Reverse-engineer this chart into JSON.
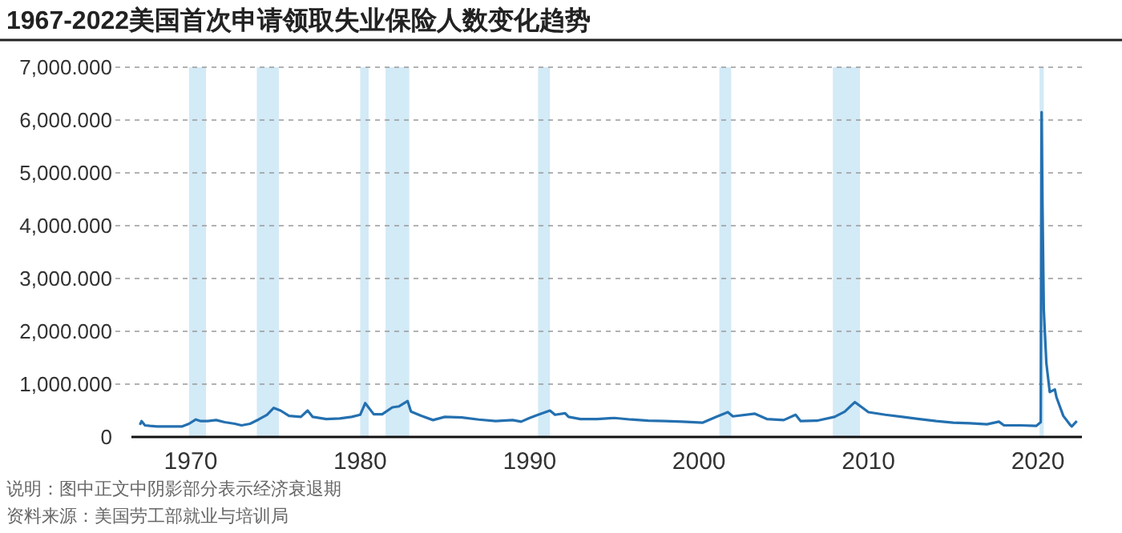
{
  "chart_data": {
    "type": "line",
    "title": "1967-2022美国首次申请领取失业保险人数变化趋势",
    "annotations": [
      "说明：图中正文中阴影部分表示经济衰退期",
      "资料来源：美国劳工部就业与培训局"
    ],
    "x": [
      1967.0,
      1967.1,
      1967.3,
      1967.6,
      1968.0,
      1968.5,
      1969.0,
      1969.5,
      1969.9,
      1970.3,
      1970.6,
      1971.0,
      1971.5,
      1972.0,
      1972.6,
      1973.0,
      1973.5,
      1974.0,
      1974.5,
      1974.9,
      1975.3,
      1975.8,
      1976.5,
      1976.9,
      1977.2,
      1978.0,
      1978.8,
      1979.5,
      1980.0,
      1980.3,
      1980.8,
      1981.3,
      1981.9,
      1982.3,
      1982.8,
      1983.0,
      1983.6,
      1984.3,
      1985.0,
      1986.0,
      1987.0,
      1988.0,
      1989.0,
      1989.5,
      1990.0,
      1990.6,
      1991.2,
      1991.5,
      1992.1,
      1992.3,
      1993.0,
      1994.0,
      1995.0,
      1996.0,
      1997.0,
      1998.0,
      1999.0,
      2000.2,
      2001.0,
      2001.7,
      2002.0,
      2003.3,
      2004.0,
      2005.0,
      2005.7,
      2006.0,
      2007.0,
      2008.0,
      2008.6,
      2009.2,
      2010.0,
      2011.0,
      2012.0,
      2013.0,
      2014.0,
      2015.0,
      2016.0,
      2017.0,
      2017.7,
      2018.0,
      2019.0,
      2019.9,
      2020.17,
      2020.22,
      2020.27,
      2020.35,
      2020.5,
      2020.7,
      2021.0,
      2021.1,
      2021.5,
      2021.9,
      2022.0,
      2022.3
    ],
    "series": [
      {
        "color": "#2470b0",
        "values": [
          230,
          300,
          220,
          210,
          200,
          200,
          200,
          200,
          250,
          330,
          300,
          300,
          320,
          280,
          250,
          220,
          250,
          330,
          420,
          550,
          500,
          400,
          380,
          500,
          380,
          340,
          350,
          380,
          420,
          640,
          430,
          430,
          560,
          580,
          680,
          480,
          400,
          320,
          380,
          370,
          330,
          300,
          320,
          290,
          360,
          430,
          500,
          420,
          450,
          380,
          340,
          340,
          360,
          330,
          310,
          300,
          290,
          270,
          380,
          470,
          390,
          440,
          340,
          320,
          420,
          300,
          310,
          380,
          480,
          660,
          470,
          420,
          380,
          340,
          300,
          270,
          260,
          240,
          290,
          220,
          220,
          210,
          280,
          6150,
          4400,
          2400,
          1400,
          850,
          900,
          750,
          400,
          230,
          200,
          300
        ]
      }
    ],
    "xlim": [
      1966.5,
      2022.6
    ],
    "xticks": [
      1970,
      1980,
      1990,
      2000,
      2010,
      2020
    ],
    "ylim": [
      0,
      7000
    ],
    "yticks": [
      {
        "value": 0,
        "label": "0"
      },
      {
        "value": 1000,
        "label": "1,000.000"
      },
      {
        "value": 2000,
        "label": "2,000.000"
      },
      {
        "value": 3000,
        "label": "3,000.000"
      },
      {
        "value": 4000,
        "label": "4,000.000"
      },
      {
        "value": 5000,
        "label": "5,000.000"
      },
      {
        "value": 6000,
        "label": "6,000.000"
      },
      {
        "value": 7000,
        "label": "7,000.000"
      }
    ],
    "bands": [
      {
        "axis": "x",
        "from": 1969.9,
        "to": 1970.9,
        "color": "#d3eaf7"
      },
      {
        "axis": "x",
        "from": 1973.9,
        "to": 1975.2,
        "color": "#d3eaf7"
      },
      {
        "axis": "x",
        "from": 1980.0,
        "to": 1980.5,
        "color": "#d3eaf7"
      },
      {
        "axis": "x",
        "from": 1981.5,
        "to": 1982.9,
        "color": "#d3eaf7"
      },
      {
        "axis": "x",
        "from": 1990.5,
        "to": 1991.2,
        "color": "#d3eaf7"
      },
      {
        "axis": "x",
        "from": 2001.2,
        "to": 2001.9,
        "color": "#d3eaf7"
      },
      {
        "axis": "x",
        "from": 2007.9,
        "to": 2009.5,
        "color": "#d3eaf7"
      },
      {
        "axis": "x",
        "from": 2020.1,
        "to": 2020.35,
        "color": "#d3eaf7"
      }
    ],
    "grid": "y",
    "line_style": "solid",
    "marker": "none"
  }
}
